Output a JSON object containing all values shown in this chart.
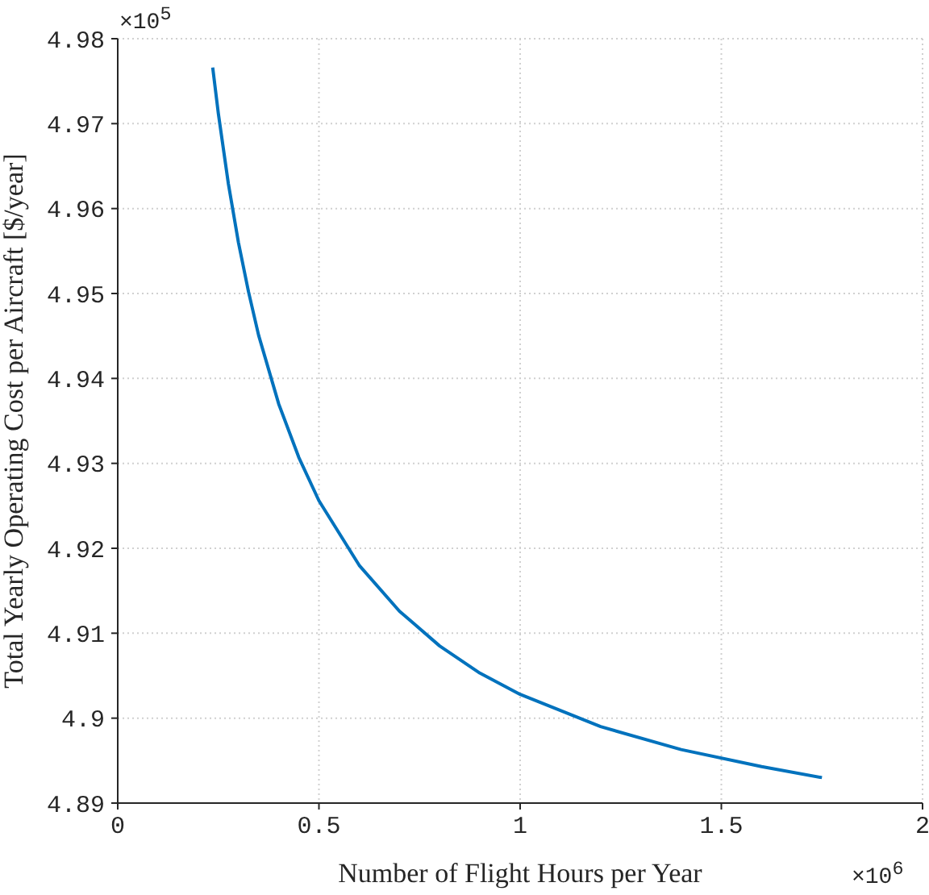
{
  "chart_data": {
    "type": "line",
    "xlabel": "Number of Flight Hours per Year",
    "ylabel": "Total Yearly Operating Cost per Aircraft [$/year]",
    "annotations": [
      "×10$^{5}$",
      "×10$^{6}$"
    ],
    "x": [
      0.236,
      0.25,
      0.275,
      0.3,
      0.325,
      0.35,
      0.4,
      0.45,
      0.5,
      0.6,
      0.7,
      0.8,
      0.9,
      1.0,
      1.2,
      1.4,
      1.6,
      1.75
    ],
    "series": [
      {
        "color": "#0072bd",
        "values": [
          4.9766,
          4.9712,
          4.9629,
          4.956,
          4.9502,
          4.9451,
          4.937,
          4.9307,
          4.9256,
          4.918,
          4.9126,
          4.9085,
          4.9053,
          4.9028,
          4.899,
          4.8963,
          4.8943,
          4.893
        ]
      }
    ],
    "xlim": [
      0,
      2
    ],
    "xticks": [
      0,
      0.5,
      1,
      1.5,
      2
    ],
    "ylim": [
      4.89,
      4.98
    ],
    "yticks": [
      4.89,
      4.9,
      4.91,
      4.92,
      4.93,
      4.94,
      4.95,
      4.96,
      4.97,
      4.98
    ],
    "grid": true,
    "line_style": "solid",
    "marker": "none",
    "legend": false
  }
}
